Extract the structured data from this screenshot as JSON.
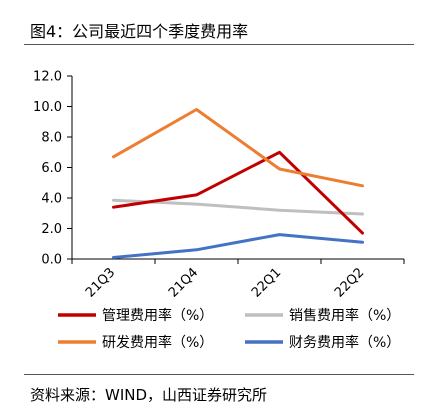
{
  "title": "图4：公司最近四个季度费用率",
  "source": "资料来源：WIND，山西证券研究所",
  "chart_data": {
    "type": "line",
    "categories": [
      "21Q3",
      "21Q4",
      "22Q1",
      "22Q2"
    ],
    "ylim": [
      0,
      12
    ],
    "yticks": [
      "0.0",
      "2.0",
      "4.0",
      "6.0",
      "8.0",
      "10.0",
      "12.0"
    ],
    "grid": false,
    "legend_position": "bottom",
    "series": [
      {
        "name": "管理费用率（%）",
        "color": "#c00000",
        "values": [
          3.4,
          4.2,
          7.0,
          1.7
        ]
      },
      {
        "name": "销售费用率（%）",
        "color": "#bfbfbf",
        "values": [
          3.85,
          3.6,
          3.2,
          2.95
        ]
      },
      {
        "name": "研发费用率（%）",
        "color": "#ed7d31",
        "values": [
          6.7,
          9.8,
          5.9,
          4.8
        ]
      },
      {
        "name": "财务费用率（%）",
        "color": "#4472c4",
        "values": [
          0.1,
          0.6,
          1.6,
          1.1
        ]
      }
    ]
  }
}
